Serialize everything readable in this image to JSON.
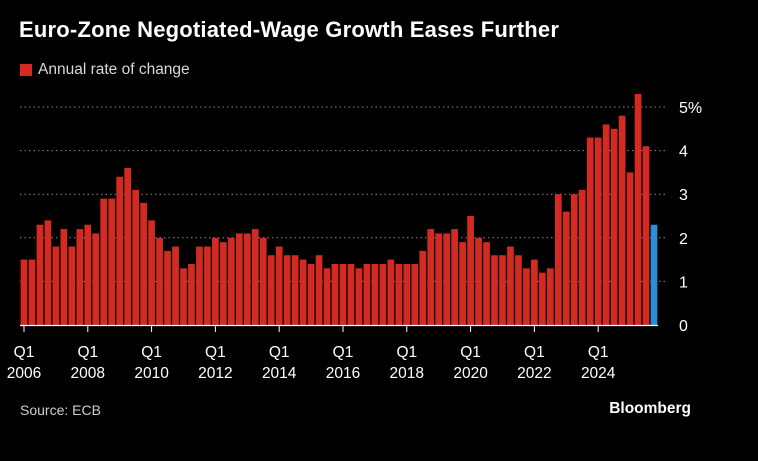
{
  "title": "Euro-Zone Negotiated-Wage Growth Eases Further",
  "legend": {
    "label": "Annual rate of change",
    "color": "#d32a21"
  },
  "source": "Source: ECB",
  "brand": "Bloomberg",
  "colors": {
    "bar": "#d32a21",
    "highlight": "#2a8fd8",
    "grid": "#8a8a8a",
    "axis": "#ffffff",
    "text": "#ffffff"
  },
  "chart_data": {
    "type": "bar",
    "x_start": "2006 Q1",
    "frequency": "quarterly",
    "x_tick_labels": [
      {
        "index": 0,
        "line1": "Q1",
        "line2": "2006"
      },
      {
        "index": 8,
        "line1": "Q1",
        "line2": "2008"
      },
      {
        "index": 16,
        "line1": "Q1",
        "line2": "2010"
      },
      {
        "index": 24,
        "line1": "Q1",
        "line2": "2012"
      },
      {
        "index": 32,
        "line1": "Q1",
        "line2": "2014"
      },
      {
        "index": 40,
        "line1": "Q1",
        "line2": "2016"
      },
      {
        "index": 48,
        "line1": "Q1",
        "line2": "2018"
      },
      {
        "index": 56,
        "line1": "Q1",
        "line2": "2020"
      },
      {
        "index": 64,
        "line1": "Q1",
        "line2": "2022"
      },
      {
        "index": 72,
        "line1": "Q1",
        "line2": "2024"
      }
    ],
    "y_ticks": [
      {
        "value": 0,
        "label": "0"
      },
      {
        "value": 1,
        "label": "1"
      },
      {
        "value": 2,
        "label": "2"
      },
      {
        "value": 3,
        "label": "3"
      },
      {
        "value": 4,
        "label": "4"
      },
      {
        "value": 5,
        "label": "5%"
      }
    ],
    "ylim": [
      0,
      5.4
    ],
    "grid": true,
    "y_axis_side": "right",
    "highlight_last": true,
    "values": [
      1.5,
      1.5,
      2.3,
      2.4,
      1.8,
      2.2,
      1.8,
      2.2,
      2.3,
      2.1,
      2.9,
      2.9,
      3.4,
      3.6,
      3.1,
      2.8,
      2.4,
      2.0,
      1.7,
      1.8,
      1.3,
      1.4,
      1.8,
      1.8,
      2.0,
      1.9,
      2.0,
      2.1,
      2.1,
      2.2,
      2.0,
      1.6,
      1.8,
      1.6,
      1.6,
      1.5,
      1.4,
      1.6,
      1.3,
      1.4,
      1.4,
      1.4,
      1.3,
      1.4,
      1.4,
      1.4,
      1.5,
      1.4,
      1.4,
      1.4,
      1.7,
      2.2,
      2.1,
      2.1,
      2.2,
      1.9,
      2.5,
      2.0,
      1.9,
      1.6,
      1.6,
      1.8,
      1.6,
      1.3,
      1.5,
      1.2,
      1.3,
      3.0,
      2.6,
      3.0,
      3.1,
      4.3,
      4.3,
      4.6,
      4.5,
      4.8,
      3.5,
      5.3,
      4.1,
      2.3
    ]
  }
}
